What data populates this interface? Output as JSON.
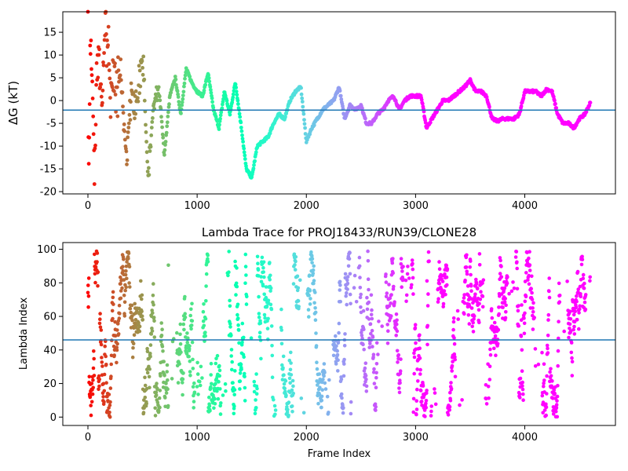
{
  "chart_data": [
    {
      "type": "scatter",
      "title": "",
      "xlabel": "",
      "ylabel": "ΔG (kT)",
      "xlim": [
        -230,
        4830
      ],
      "ylim": [
        -20.5,
        19.5
      ],
      "xticks": [
        "0",
        "1000",
        "2000",
        "3000",
        "4000"
      ],
      "yticks": [
        "-20",
        "-15",
        "-10",
        "-5",
        "0",
        "5",
        "10",
        "15"
      ],
      "hline": -2.1,
      "hline_color": "#1f77b4",
      "colormap": "rainbow",
      "series": [
        {
          "x": [
            0,
            10,
            20,
            40,
            60,
            80,
            100,
            130,
            160,
            200,
            250,
            300,
            350,
            400,
            450,
            500,
            550,
            600,
            650,
            700,
            750,
            800,
            850,
            900,
            950,
            1000,
            1050,
            1100,
            1150,
            1200,
            1250,
            1300,
            1350,
            1400,
            1450,
            1500,
            1550,
            1600,
            1650,
            1700,
            1750,
            1800,
            1850,
            1900,
            1950,
            2000,
            2050,
            2100,
            2150,
            2200,
            2250,
            2300,
            2350,
            2400,
            2450,
            2500,
            2550,
            2600,
            2650,
            2700,
            2750,
            2800,
            2850,
            2900,
            2950,
            3000,
            3050,
            3100,
            3150,
            3200,
            3250,
            3300,
            3350,
            3400,
            3450,
            3500,
            3550,
            3600,
            3650,
            3700,
            3750,
            3800,
            3850,
            3900,
            3950,
            4000,
            4050,
            4100,
            4150,
            4200,
            4250,
            4300,
            4350,
            4400,
            4450,
            4500,
            4550,
            4600
          ],
          "y": [
            10.5,
            -20,
            12,
            4,
            -15,
            8,
            13,
            -2,
            19,
            5,
            1,
            6,
            -12,
            2,
            0,
            11,
            -17,
            -1,
            3,
            -12,
            1,
            5,
            -3,
            7,
            4,
            2,
            1,
            6,
            -2,
            -6,
            2,
            -3,
            4,
            -5,
            -15,
            -17,
            -10,
            -9,
            -8,
            -5,
            -3,
            -4,
            0,
            2,
            3,
            -9,
            -6,
            -4,
            -2,
            -1,
            0,
            3,
            -4,
            -1,
            -2,
            -1,
            -5,
            -5,
            -3,
            -2,
            0,
            1,
            -2,
            0,
            1,
            1,
            1,
            -6,
            -4,
            -2,
            0,
            0,
            1,
            2,
            3,
            4.5,
            2,
            2,
            1,
            -4,
            -4.5,
            -4,
            -4,
            -4,
            -3,
            2,
            2,
            2,
            1,
            2.5,
            2,
            -3,
            -5,
            -5,
            -6,
            -4,
            -3,
            -0.5
          ]
        }
      ]
    },
    {
      "type": "scatter",
      "title": "Lambda Trace for PROJ18433/RUN39/CLONE28",
      "xlabel": "Frame Index",
      "ylabel": "Lambda Index",
      "xlim": [
        -230,
        4830
      ],
      "ylim": [
        -5,
        104
      ],
      "xticks": [
        "0",
        "1000",
        "2000",
        "3000",
        "4000"
      ],
      "yticks": [
        "0",
        "20",
        "40",
        "60",
        "80",
        "100"
      ],
      "hline": 46,
      "hline_color": "#1f77b4",
      "colormap": "rainbow",
      "x_data_range": [
        0,
        4600
      ],
      "y_data_range": [
        0,
        99
      ]
    }
  ]
}
